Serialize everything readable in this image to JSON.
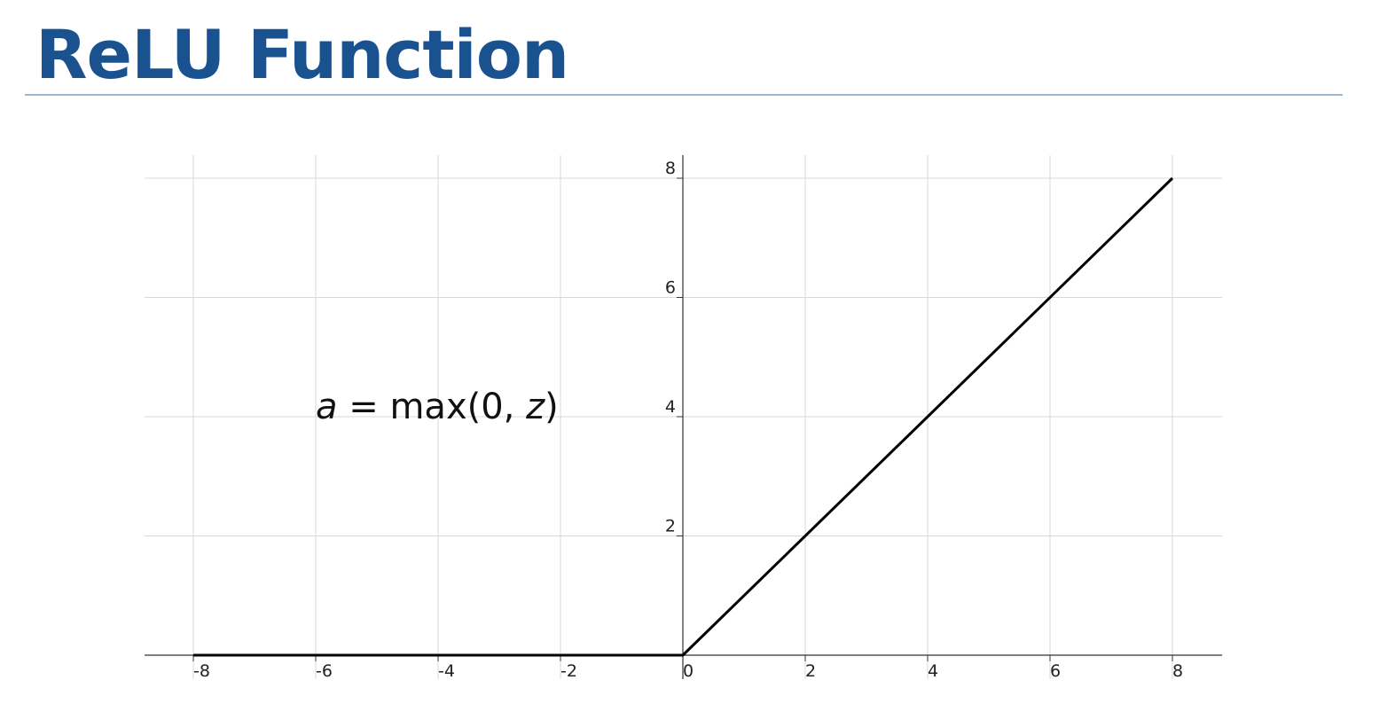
{
  "slide": {
    "title": "ReLU Function",
    "title_color": "#1a5290",
    "rule_color": "#9fb6d3"
  },
  "chart_data": {
    "type": "line",
    "title": "",
    "xlabel": "",
    "ylabel": "",
    "xlim": [
      -8,
      8
    ],
    "ylim": [
      0,
      8
    ],
    "grid": true,
    "x_ticks": [
      -8,
      -6,
      -4,
      -2,
      0,
      2,
      4,
      6,
      8
    ],
    "y_ticks": [
      2,
      4,
      6,
      8
    ],
    "x_tick_labels": [
      "-8",
      "-6",
      "-4",
      "-2",
      "0",
      "2",
      "4",
      "6",
      "8"
    ],
    "y_tick_labels": [
      "2",
      "4",
      "6",
      "8"
    ],
    "series": [
      {
        "color": "#000000",
        "x": [
          -8,
          0,
          8
        ],
        "y": [
          0,
          0,
          8
        ]
      }
    ],
    "annotation": {
      "text": "a = max(0, z)",
      "x": -6,
      "y": 4
    },
    "grid_color": "#d8d8d8",
    "axis_color": "#333333"
  }
}
